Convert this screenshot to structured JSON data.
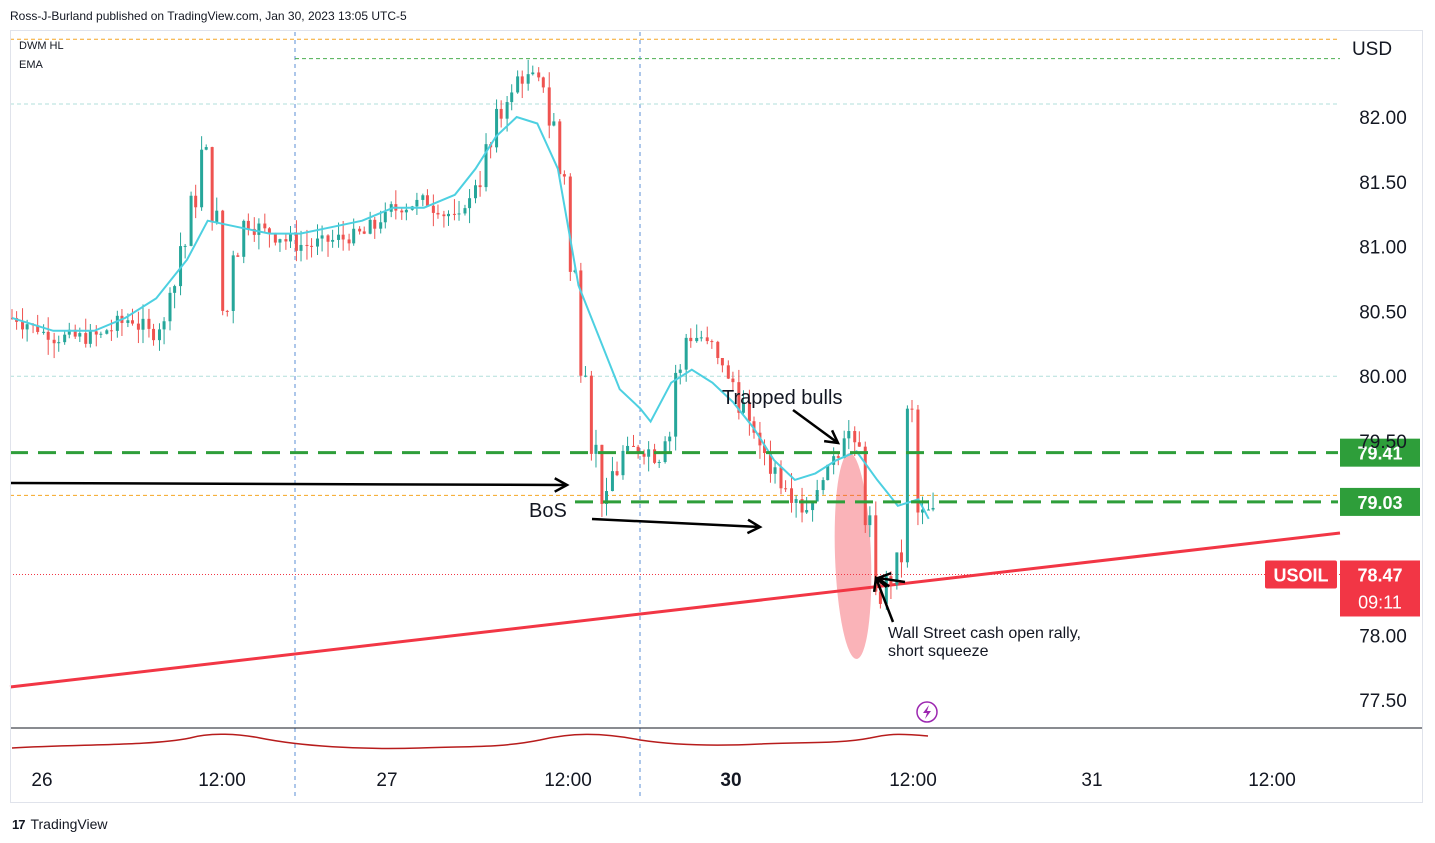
{
  "header": {
    "published": "Ross-J-Burland published on TradingView.com, Jan 30, 2023 13:05 UTC-5",
    "indicators": [
      "DWM HL",
      "EMA"
    ]
  },
  "footer": {
    "brand": "TradingView",
    "logo_text": "17"
  },
  "chart_data": {
    "type": "candlestick",
    "symbol": "USOIL",
    "currency": "USD",
    "y_ticks": [
      "82.00",
      "81.50",
      "81.00",
      "80.50",
      "80.00",
      "79.50",
      "78.00",
      "77.50"
    ],
    "x_ticks": [
      "26",
      "12:00",
      "27",
      "12:00",
      "30",
      "12:00",
      "31",
      "12:00"
    ],
    "ylim": [
      77.3,
      82.6
    ],
    "last_price": {
      "value": "78.47",
      "countdown": "09:11",
      "label": "USOIL",
      "color": "#f23645"
    },
    "levels": [
      {
        "value": "79.41",
        "color": "#2e9e3a",
        "style": "dashed"
      },
      {
        "value": "79.03",
        "color": "#2e9e3a",
        "style": "dashed"
      }
    ],
    "reference_lines": [
      {
        "value": 82.6,
        "color": "#f5a623",
        "style": "dotted"
      },
      {
        "value": 82.45,
        "color": "#4caf50",
        "style": "dotted"
      },
      {
        "value": 82.1,
        "color": "#b2dfdb",
        "style": "dotted"
      },
      {
        "value": 80.0,
        "color": "#b2dfdb",
        "style": "dotted"
      },
      {
        "value": 79.08,
        "color": "#f5a623",
        "style": "dotted"
      }
    ],
    "trendline": {
      "color": "#f23645",
      "from": [
        "26 00:00",
        77.6
      ],
      "to": [
        "31 08:00",
        78.8
      ]
    },
    "ema_color": "#4dd0e1",
    "up_color": "#26a69a",
    "down_color": "#ef5350",
    "series_path": [
      [
        0,
        80.45
      ],
      [
        4,
        80.3
      ],
      [
        8,
        80.3
      ],
      [
        11,
        80.45
      ],
      [
        14,
        80.3
      ],
      [
        17,
        81.2
      ],
      [
        19,
        81.95
      ],
      [
        20,
        80.3
      ],
      [
        22,
        81.2
      ],
      [
        25,
        81.1
      ],
      [
        28,
        81.0
      ],
      [
        31,
        81.05
      ],
      [
        34,
        81.1
      ],
      [
        37,
        81.3
      ],
      [
        40,
        81.35
      ],
      [
        43,
        81.2
      ],
      [
        45,
        81.5
      ],
      [
        47,
        82.0
      ],
      [
        49,
        82.3
      ],
      [
        51,
        82.3
      ],
      [
        53,
        81.7
      ],
      [
        55,
        80.2
      ],
      [
        57,
        79.0
      ],
      [
        59,
        79.4
      ],
      [
        61,
        79.45
      ],
      [
        63,
        79.35
      ],
      [
        65,
        80.3
      ],
      [
        67,
        80.3
      ],
      [
        69,
        80.05
      ],
      [
        71,
        79.7
      ],
      [
        73,
        79.35
      ],
      [
        75,
        79.15
      ],
      [
        77,
        78.95
      ],
      [
        79,
        79.3
      ],
      [
        81,
        79.6
      ],
      [
        82,
        79.4
      ],
      [
        83,
        78.8
      ],
      [
        84,
        78.2
      ],
      [
        85,
        78.45
      ],
      [
        86,
        78.6
      ],
      [
        87,
        79.8
      ],
      [
        88,
        78.9
      ],
      [
        89,
        78.95
      ],
      [
        90,
        78.5
      ]
    ],
    "ema_path": [
      [
        0,
        80.45
      ],
      [
        4,
        80.35
      ],
      [
        8,
        80.35
      ],
      [
        11,
        80.45
      ],
      [
        14,
        80.6
      ],
      [
        17,
        80.9
      ],
      [
        19,
        81.2
      ],
      [
        22,
        81.15
      ],
      [
        25,
        81.1
      ],
      [
        28,
        81.1
      ],
      [
        31,
        81.15
      ],
      [
        34,
        81.2
      ],
      [
        37,
        81.3
      ],
      [
        40,
        81.3
      ],
      [
        43,
        81.4
      ],
      [
        45,
        81.6
      ],
      [
        47,
        81.85
      ],
      [
        49,
        82.0
      ],
      [
        51,
        81.95
      ],
      [
        53,
        81.6
      ],
      [
        55,
        80.7
      ],
      [
        57,
        80.3
      ],
      [
        59,
        79.9
      ],
      [
        61,
        79.75
      ],
      [
        62,
        79.65
      ],
      [
        64,
        79.95
      ],
      [
        66,
        80.05
      ],
      [
        68,
        79.95
      ],
      [
        70,
        79.8
      ],
      [
        72,
        79.6
      ],
      [
        74,
        79.35
      ],
      [
        76,
        79.2
      ],
      [
        78,
        79.25
      ],
      [
        80,
        79.35
      ],
      [
        82,
        79.42
      ],
      [
        84,
        79.2
      ],
      [
        85,
        79.1
      ],
      [
        86,
        79.0
      ],
      [
        88,
        79.05
      ],
      [
        89,
        78.9
      ]
    ],
    "annotations": [
      {
        "id": "trapped",
        "text": "Trapped bulls"
      },
      {
        "id": "bos",
        "text": "BoS"
      },
      {
        "id": "wallstreet",
        "lines": [
          "Wall Street cash open rally,",
          "short squeeze"
        ]
      }
    ]
  }
}
